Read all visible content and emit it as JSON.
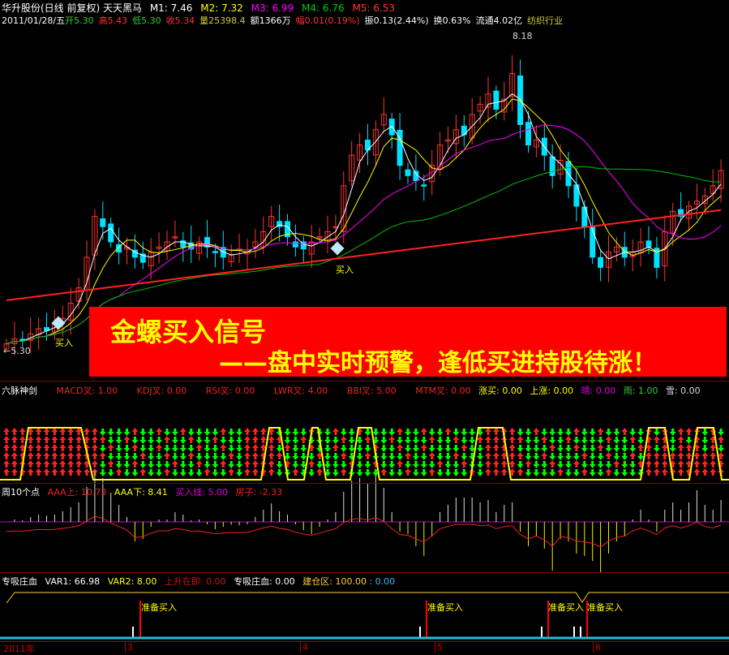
{
  "header": {
    "title": "华升股份(日线 前复权) 天天黑马",
    "m1": "M1: 7.46",
    "m2": "M2: 7.32",
    "m3": "M3: 6.99",
    "m4": "M4: 6.76",
    "m5": "M5: 6.53",
    "date": "2011/01/28/五",
    "open": "开5.30",
    "high": "高5.43",
    "low": "低5.30",
    "close": "收5.34",
    "volume": "量25398.4",
    "amount": "额1366万",
    "change": "幅0.01(0.19%)",
    "amplitude": "振0.13(2.44%)",
    "turnover": "换0.63%",
    "float": "流通4.02亿",
    "industry": "纺织行业"
  },
  "main": {
    "max_label": "8.18",
    "min_label": "←5.30",
    "buy_label_1": "买入",
    "buy_label_2": "买入",
    "banner_line1": "金螺买入信号",
    "banner_line2": "——盘中实时预警，逢低买进持股待涨！",
    "colors": {
      "up": "#ff3232",
      "down": "#00e0ff",
      "ma5": "#ffffff",
      "ma10": "#ffff00",
      "ma20": "#ff00ff",
      "ma60": "#00c000",
      "long": "#ff2020"
    }
  },
  "chart_data": {
    "type": "candlestick",
    "ylim": [
      5.3,
      8.18
    ],
    "closes": [
      5.35,
      5.4,
      5.38,
      5.45,
      5.5,
      5.48,
      5.55,
      5.6,
      5.75,
      5.9,
      6.2,
      6.6,
      6.5,
      6.35,
      6.25,
      6.3,
      6.2,
      6.15,
      6.25,
      6.3,
      6.35,
      6.4,
      6.3,
      6.28,
      6.35,
      6.3,
      6.25,
      6.2,
      6.22,
      6.28,
      6.25,
      6.35,
      6.45,
      6.6,
      6.5,
      6.4,
      6.3,
      6.28,
      6.35,
      6.4,
      6.45,
      6.5,
      6.9,
      7.2,
      7.3,
      7.25,
      7.45,
      7.6,
      7.4,
      7.1,
      7.0,
      6.95,
      6.9,
      7.1,
      7.3,
      7.35,
      7.45,
      7.4,
      7.6,
      7.7,
      7.8,
      7.65,
      7.75,
      8.0,
      7.5,
      7.3,
      7.35,
      7.2,
      7.0,
      7.15,
      6.9,
      6.7,
      6.5,
      6.2,
      6.1,
      6.25,
      6.3,
      6.2,
      6.25,
      6.35,
      6.3,
      6.1,
      6.45,
      6.65,
      6.6,
      6.7,
      6.75,
      6.8,
      6.9,
      7.05
    ]
  },
  "panel1": {
    "title": "六脉神剑",
    "items": [
      "MACD叉: 1.00",
      "KDJ叉: 0.00",
      "RSI叉: 0.00",
      "LWR叉: 4.00",
      "BBI叉: 5.00",
      "MTM叉: 0.00"
    ],
    "zm": "涨买: 0.00",
    "sz": "上涨: 0.00",
    "qing": "晴: 0.00",
    "yu": "雨: 1.00",
    "xue": "雪: 0.00"
  },
  "panel2": {
    "title": "周10个点",
    "aaa_up": "AAA上: 10.73",
    "aaa_down": "AAA下: 8.41",
    "buy_line": "买入线: 5.00",
    "house": "房子: -2.33"
  },
  "panel3": {
    "title": "专吸庄血",
    "var1": "VAR1: 66.98",
    "var2": "VAR2: 8.00",
    "rise": "上升在即: 0.00",
    "zxzx": "专吸庄血: 0.00",
    "jcq": "建仓区: 100.00",
    "blue": ": 0.00",
    "signal": "准备买入"
  },
  "axis": {
    "year": "2011年",
    "m3": "3",
    "m4": "4",
    "m5": "5",
    "m6": "6"
  }
}
